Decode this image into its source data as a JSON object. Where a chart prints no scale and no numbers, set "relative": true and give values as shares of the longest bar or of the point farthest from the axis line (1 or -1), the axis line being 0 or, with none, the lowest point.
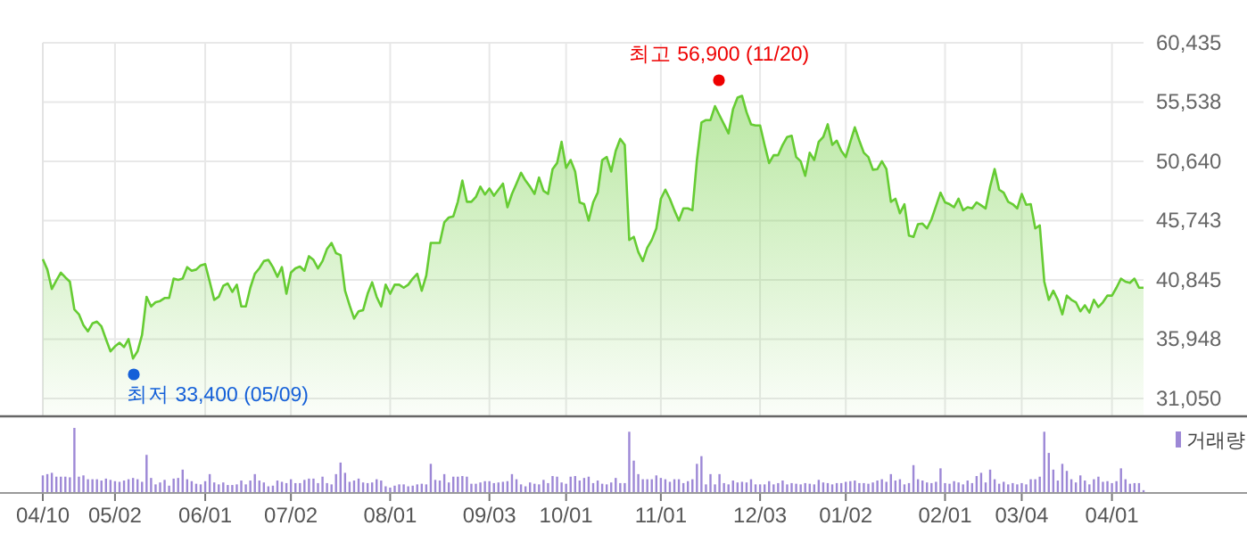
{
  "chart_data": [
    {
      "type": "area",
      "grid": true,
      "tick_labels": "y",
      "ylim": [
        29650,
        60435
      ],
      "yticks": [
        {
          "value": 31050,
          "label": "31,050"
        },
        {
          "value": 35948,
          "label": "35,948"
        },
        {
          "value": 40845,
          "label": "40,845"
        },
        {
          "value": 45743,
          "label": "45,743"
        },
        {
          "value": 50640,
          "label": "50,640"
        },
        {
          "value": 55538,
          "label": "55,538"
        },
        {
          "value": 60435,
          "label": "60,435"
        }
      ],
      "categories": [
        null,
        null,
        null,
        null,
        null,
        null,
        null,
        null,
        null,
        null,
        null,
        null,
        null,
        null,
        null,
        null,
        null,
        null,
        null,
        null,
        null,
        null,
        null,
        null,
        null,
        null,
        null,
        null,
        null,
        null,
        null,
        null,
        null,
        null,
        null,
        null,
        null,
        null,
        null,
        null,
        null,
        null,
        null,
        null,
        null,
        null,
        null,
        null,
        null,
        null,
        null,
        null,
        null,
        null,
        null,
        null,
        null,
        null,
        null,
        null,
        null,
        null,
        null,
        null,
        null,
        null,
        null,
        null,
        null,
        null,
        null,
        null,
        null,
        null,
        null,
        null,
        null,
        null,
        null,
        null,
        null,
        null,
        null,
        null,
        null,
        null,
        null,
        null,
        null,
        null,
        null,
        null,
        null,
        null,
        null,
        null,
        null,
        null,
        null,
        null,
        null,
        null,
        null,
        null,
        null,
        null,
        null,
        null,
        null,
        null,
        null,
        null,
        null,
        null,
        null,
        null,
        null,
        null,
        null,
        null,
        null,
        null,
        null,
        null,
        null,
        null,
        null,
        null,
        null,
        null,
        null,
        null,
        null,
        null,
        null,
        null,
        null,
        null,
        null,
        null,
        null,
        null,
        null,
        null,
        null,
        null,
        null,
        null,
        null,
        null,
        null,
        null,
        null,
        null,
        null,
        null,
        null,
        null,
        null,
        null,
        null,
        null,
        null,
        null,
        null,
        null,
        null,
        null,
        null,
        null,
        null,
        null,
        null,
        null,
        null,
        null,
        null,
        null,
        null,
        null,
        null,
        null,
        null,
        null,
        null,
        null,
        null,
        null,
        null,
        null,
        null,
        null,
        null,
        null,
        null,
        null,
        null,
        null,
        null,
        null,
        null,
        null,
        null,
        null,
        null,
        null,
        null,
        null,
        null,
        null,
        null,
        null,
        null,
        null,
        null,
        null,
        null,
        null,
        null,
        null,
        null,
        null,
        null,
        null,
        null,
        null,
        null,
        null,
        null,
        null,
        null,
        null,
        null,
        null,
        null,
        null,
        null,
        null,
        null,
        null,
        null,
        null,
        null,
        null,
        null
      ],
      "series": [
        {
          "color": "#66cc33",
          "values": [
            42550,
            41700,
            40100,
            40800,
            41450,
            41050,
            40700,
            38400,
            38000,
            37100,
            36600,
            37250,
            37400,
            37000,
            35950,
            34950,
            35350,
            35650,
            35300,
            35950,
            34350,
            34950,
            36300,
            39450,
            38650,
            39000,
            39100,
            39350,
            39350,
            40950,
            40850,
            40950,
            41900,
            41600,
            41700,
            42050,
            42150,
            40700,
            39200,
            39450,
            40350,
            40550,
            39850,
            40450,
            38650,
            38650,
            40200,
            41350,
            41800,
            42400,
            42500,
            41900,
            41100,
            41900,
            39700,
            41450,
            41800,
            41950,
            41600,
            42800,
            42500,
            41800,
            42400,
            43400,
            43900,
            43050,
            42900,
            39950,
            38750,
            37650,
            38250,
            38350,
            39700,
            40650,
            39450,
            38650,
            40450,
            39700,
            40450,
            40450,
            40200,
            40450,
            40950,
            41350,
            39950,
            41200,
            43900,
            43900,
            43900,
            45600,
            46000,
            46100,
            47300,
            49050,
            47300,
            47300,
            47700,
            48550,
            47900,
            48400,
            47800,
            48300,
            48800,
            46850,
            47950,
            48800,
            49700,
            49050,
            48550,
            47950,
            49300,
            48200,
            47950,
            50000,
            50500,
            52250,
            50100,
            50750,
            49800,
            47250,
            47100,
            45750,
            47250,
            48050,
            50750,
            51000,
            49800,
            51500,
            52500,
            52000,
            44150,
            44400,
            43150,
            42400,
            43500,
            44150,
            45100,
            47550,
            48300,
            47550,
            46600,
            45750,
            46750,
            46750,
            46600,
            50750,
            53850,
            54050,
            54050,
            55200,
            54450,
            53700,
            52950,
            54950,
            55900,
            56050,
            54700,
            53700,
            53600,
            53600,
            52000,
            50500,
            51150,
            51150,
            52000,
            52650,
            52750,
            51000,
            50650,
            49450,
            51350,
            50750,
            52250,
            52650,
            53700,
            52000,
            52350,
            51500,
            51000,
            52250,
            53450,
            52350,
            51350,
            51000,
            49950,
            50000,
            50650,
            50000,
            47300,
            47550,
            46350,
            47100,
            44500,
            44400,
            45450,
            45500,
            45100,
            45850,
            46950,
            48050,
            47250,
            47100,
            46850,
            47550,
            46600,
            46850,
            46750,
            47250,
            47000,
            46750,
            48550,
            50000,
            48300,
            48050,
            47300,
            47100,
            46750,
            47950,
            47050,
            47100,
            45100,
            45350,
            40700,
            39200,
            39950,
            39200,
            38000,
            39550,
            39200,
            39000,
            38250,
            38750,
            38150,
            39200,
            38600,
            39000,
            39550,
            39550,
            40200,
            40950,
            40700,
            40600,
            40950,
            40200,
            40200
          ]
        }
      ],
      "annotations": [
        "최고 56,900 (11/20)",
        "최저 33,400 (05/09)"
      ]
    },
    {
      "type": "bar",
      "relative": true,
      "tick_labels": "x",
      "legend": "top right",
      "categories": [
        "04/10",
        null,
        null,
        null,
        null,
        null,
        null,
        null,
        null,
        null,
        null,
        null,
        null,
        null,
        null,
        null,
        "05/02",
        null,
        null,
        null,
        null,
        null,
        null,
        null,
        null,
        null,
        null,
        null,
        null,
        null,
        null,
        null,
        null,
        null,
        null,
        null,
        "06/01",
        null,
        null,
        null,
        null,
        null,
        null,
        null,
        null,
        null,
        null,
        null,
        null,
        null,
        null,
        null,
        null,
        null,
        null,
        "07/02",
        null,
        null,
        null,
        null,
        null,
        null,
        null,
        null,
        null,
        null,
        null,
        null,
        null,
        null,
        null,
        null,
        null,
        null,
        null,
        null,
        null,
        "08/01",
        null,
        null,
        null,
        null,
        null,
        null,
        null,
        null,
        null,
        null,
        null,
        null,
        null,
        null,
        null,
        null,
        null,
        null,
        null,
        null,
        null,
        "09/03",
        null,
        null,
        null,
        null,
        null,
        null,
        null,
        null,
        null,
        null,
        null,
        null,
        null,
        null,
        null,
        null,
        "10/01",
        null,
        null,
        null,
        null,
        null,
        null,
        null,
        null,
        null,
        null,
        null,
        null,
        null,
        null,
        null,
        null,
        null,
        null,
        null,
        null,
        "11/01",
        null,
        null,
        null,
        null,
        null,
        null,
        null,
        null,
        null,
        null,
        null,
        null,
        null,
        null,
        null,
        null,
        null,
        null,
        null,
        null,
        null,
        "12/03",
        null,
        null,
        null,
        null,
        null,
        null,
        null,
        null,
        null,
        null,
        null,
        null,
        null,
        null,
        null,
        null,
        null,
        null,
        "01/02",
        null,
        null,
        null,
        null,
        null,
        null,
        null,
        null,
        null,
        null,
        null,
        null,
        null,
        null,
        null,
        null,
        null,
        null,
        null,
        null,
        null,
        "02/01",
        null,
        null,
        null,
        null,
        null,
        null,
        null,
        null,
        null,
        null,
        null,
        null,
        null,
        null,
        null,
        null,
        "03/04",
        null,
        null,
        null,
        null,
        null,
        null,
        null,
        null,
        null,
        null,
        null,
        null,
        null,
        null,
        null,
        null,
        null,
        null,
        null,
        "04/01",
        null,
        null,
        null,
        null,
        null,
        null,
        null
      ],
      "series": [
        {
          "name": "거래량",
          "color": "#9d88d6",
          "values": [
            0.26,
            0.28,
            0.3,
            0.24,
            0.24,
            0.24,
            0.23,
            1.0,
            0.24,
            0.26,
            0.2,
            0.2,
            0.2,
            0.18,
            0.21,
            0.19,
            0.17,
            0.16,
            0.18,
            0.2,
            0.22,
            0.2,
            0.16,
            0.58,
            0.22,
            0.12,
            0.15,
            0.19,
            0.1,
            0.21,
            0.22,
            0.35,
            0.2,
            0.17,
            0.13,
            0.12,
            0.17,
            0.28,
            0.15,
            0.12,
            0.15,
            0.11,
            0.11,
            0.12,
            0.18,
            0.12,
            0.18,
            0.28,
            0.18,
            0.15,
            0.09,
            0.1,
            0.18,
            0.16,
            0.14,
            0.2,
            0.14,
            0.14,
            0.19,
            0.21,
            0.21,
            0.14,
            0.24,
            0.14,
            0.12,
            0.28,
            0.46,
            0.3,
            0.16,
            0.18,
            0.21,
            0.15,
            0.14,
            0.15,
            0.2,
            0.18,
            0.09,
            0.07,
            0.1,
            0.12,
            0.12,
            0.09,
            0.1,
            0.12,
            0.13,
            0.12,
            0.44,
            0.19,
            0.18,
            0.28,
            0.15,
            0.24,
            0.24,
            0.25,
            0.24,
            0.13,
            0.13,
            0.15,
            0.17,
            0.17,
            0.14,
            0.15,
            0.16,
            0.17,
            0.28,
            0.2,
            0.12,
            0.09,
            0.15,
            0.13,
            0.12,
            0.19,
            0.14,
            0.25,
            0.24,
            0.15,
            0.13,
            0.24,
            0.25,
            0.18,
            0.22,
            0.24,
            0.14,
            0.18,
            0.13,
            0.12,
            0.15,
            0.22,
            0.14,
            0.14,
            0.94,
            0.49,
            0.28,
            0.2,
            0.2,
            0.2,
            0.26,
            0.22,
            0.2,
            0.16,
            0.2,
            0.2,
            0.14,
            0.17,
            0.2,
            0.44,
            0.56,
            0.12,
            0.28,
            0.12,
            0.28,
            0.14,
            0.12,
            0.18,
            0.15,
            0.16,
            0.15,
            0.2,
            0.12,
            0.12,
            0.12,
            0.17,
            0.12,
            0.14,
            0.18,
            0.12,
            0.14,
            0.13,
            0.12,
            0.14,
            0.13,
            0.12,
            0.19,
            0.15,
            0.14,
            0.12,
            0.14,
            0.14,
            0.16,
            0.17,
            0.18,
            0.14,
            0.14,
            0.13,
            0.15,
            0.18,
            0.2,
            0.16,
            0.28,
            0.18,
            0.2,
            0.12,
            0.14,
            0.42,
            0.2,
            0.18,
            0.15,
            0.14,
            0.16,
            0.37,
            0.14,
            0.13,
            0.17,
            0.15,
            0.12,
            0.18,
            0.14,
            0.25,
            0.3,
            0.15,
            0.35,
            0.2,
            0.13,
            0.16,
            0.12,
            0.14,
            0.12,
            0.14,
            0.12,
            0.2,
            0.2,
            0.24,
            0.94,
            0.61,
            0.35,
            0.18,
            0.44,
            0.33,
            0.2,
            0.15,
            0.26,
            0.18,
            0.12,
            0.2,
            0.24,
            0.16,
            0.17,
            0.14,
            0.17,
            0.37,
            0.2,
            0.13,
            0.14,
            0.14,
            0.03
          ]
        }
      ]
    }
  ]
}
